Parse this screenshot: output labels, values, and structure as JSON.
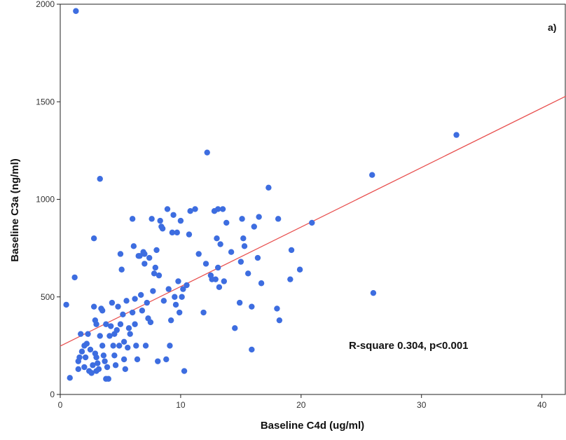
{
  "chart_data": {
    "type": "scatter",
    "panel_label": "a)",
    "xlabel": "Baseline C4d (ug/ml)",
    "ylabel": "Baseline C3a (ng/ml)",
    "xlim": [
      0,
      42
    ],
    "ylim": [
      0,
      2000
    ],
    "xticks": [
      0,
      10,
      20,
      30,
      40
    ],
    "yticks": [
      0,
      500,
      1000,
      1500,
      2000
    ],
    "annotation": "R-square 0.304, p<0.001",
    "grid": false,
    "point_color": "#3d6de0",
    "line_color": "#e8504f",
    "fit_line": {
      "intercept": 248,
      "slope": 30.5
    },
    "points": [
      [
        1.3,
        1965
      ],
      [
        0.5,
        460
      ],
      [
        1.2,
        600
      ],
      [
        0.8,
        85
      ],
      [
        1.5,
        130
      ],
      [
        1.5,
        170
      ],
      [
        1.6,
        190
      ],
      [
        1.7,
        310
      ],
      [
        1.8,
        220
      ],
      [
        2.0,
        250
      ],
      [
        2.0,
        140
      ],
      [
        2.1,
        190
      ],
      [
        2.2,
        260
      ],
      [
        2.3,
        310
      ],
      [
        2.4,
        120
      ],
      [
        2.5,
        230
      ],
      [
        2.6,
        110
      ],
      [
        2.7,
        150
      ],
      [
        2.8,
        450
      ],
      [
        2.8,
        800
      ],
      [
        2.9,
        380
      ],
      [
        2.9,
        210
      ],
      [
        3.0,
        360
      ],
      [
        3.0,
        190
      ],
      [
        3.0,
        120
      ],
      [
        3.1,
        160
      ],
      [
        3.2,
        130
      ],
      [
        3.3,
        300
      ],
      [
        3.3,
        1105
      ],
      [
        3.4,
        440
      ],
      [
        3.5,
        430
      ],
      [
        3.5,
        250
      ],
      [
        3.6,
        200
      ],
      [
        3.7,
        170
      ],
      [
        3.8,
        360
      ],
      [
        3.8,
        80
      ],
      [
        3.9,
        140
      ],
      [
        4.0,
        80
      ],
      [
        4.1,
        300
      ],
      [
        4.2,
        350
      ],
      [
        4.3,
        470
      ],
      [
        4.4,
        250
      ],
      [
        4.5,
        310
      ],
      [
        4.5,
        200
      ],
      [
        4.6,
        150
      ],
      [
        4.7,
        330
      ],
      [
        4.8,
        450
      ],
      [
        4.9,
        250
      ],
      [
        5.0,
        720
      ],
      [
        5.0,
        360
      ],
      [
        5.1,
        640
      ],
      [
        5.2,
        410
      ],
      [
        5.3,
        270
      ],
      [
        5.3,
        180
      ],
      [
        5.4,
        130
      ],
      [
        5.5,
        480
      ],
      [
        5.6,
        240
      ],
      [
        5.7,
        340
      ],
      [
        5.8,
        310
      ],
      [
        6.0,
        900
      ],
      [
        6.0,
        420
      ],
      [
        6.1,
        760
      ],
      [
        6.2,
        490
      ],
      [
        6.2,
        360
      ],
      [
        6.3,
        250
      ],
      [
        6.4,
        180
      ],
      [
        6.5,
        710
      ],
      [
        6.6,
        710
      ],
      [
        6.7,
        510
      ],
      [
        6.8,
        430
      ],
      [
        6.9,
        730
      ],
      [
        7.0,
        720
      ],
      [
        7.0,
        670
      ],
      [
        7.1,
        250
      ],
      [
        7.2,
        470
      ],
      [
        7.3,
        390
      ],
      [
        7.4,
        700
      ],
      [
        7.5,
        370
      ],
      [
        7.6,
        900
      ],
      [
        7.7,
        530
      ],
      [
        7.8,
        620
      ],
      [
        7.9,
        650
      ],
      [
        8.0,
        740
      ],
      [
        8.1,
        170
      ],
      [
        8.2,
        610
      ],
      [
        8.3,
        890
      ],
      [
        8.4,
        860
      ],
      [
        8.5,
        850
      ],
      [
        8.6,
        480
      ],
      [
        8.8,
        180
      ],
      [
        8.9,
        950
      ],
      [
        9.0,
        540
      ],
      [
        9.1,
        250
      ],
      [
        9.2,
        380
      ],
      [
        9.3,
        830
      ],
      [
        9.4,
        920
      ],
      [
        9.5,
        500
      ],
      [
        9.6,
        460
      ],
      [
        9.7,
        830
      ],
      [
        9.8,
        580
      ],
      [
        9.9,
        420
      ],
      [
        10.0,
        890
      ],
      [
        10.1,
        500
      ],
      [
        10.2,
        540
      ],
      [
        10.3,
        120
      ],
      [
        10.5,
        560
      ],
      [
        10.7,
        820
      ],
      [
        10.8,
        940
      ],
      [
        11.2,
        950
      ],
      [
        11.5,
        720
      ],
      [
        11.9,
        420
      ],
      [
        12.1,
        670
      ],
      [
        12.2,
        1240
      ],
      [
        12.5,
        610
      ],
      [
        12.6,
        590
      ],
      [
        12.8,
        940
      ],
      [
        12.9,
        590
      ],
      [
        13.0,
        800
      ],
      [
        13.1,
        950
      ],
      [
        13.1,
        650
      ],
      [
        13.2,
        550
      ],
      [
        13.3,
        770
      ],
      [
        13.5,
        950
      ],
      [
        13.6,
        580
      ],
      [
        13.8,
        880
      ],
      [
        14.2,
        730
      ],
      [
        14.5,
        340
      ],
      [
        14.9,
        470
      ],
      [
        15.0,
        680
      ],
      [
        15.1,
        900
      ],
      [
        15.2,
        800
      ],
      [
        15.3,
        760
      ],
      [
        15.6,
        620
      ],
      [
        15.9,
        450
      ],
      [
        15.9,
        230
      ],
      [
        16.1,
        860
      ],
      [
        16.4,
        700
      ],
      [
        16.5,
        910
      ],
      [
        16.7,
        570
      ],
      [
        17.3,
        1060
      ],
      [
        18.0,
        440
      ],
      [
        18.1,
        900
      ],
      [
        18.2,
        380
      ],
      [
        19.1,
        590
      ],
      [
        19.2,
        740
      ],
      [
        19.9,
        640
      ],
      [
        20.9,
        880
      ],
      [
        25.9,
        1125
      ],
      [
        26.0,
        520
      ],
      [
        32.9,
        1330
      ]
    ]
  }
}
